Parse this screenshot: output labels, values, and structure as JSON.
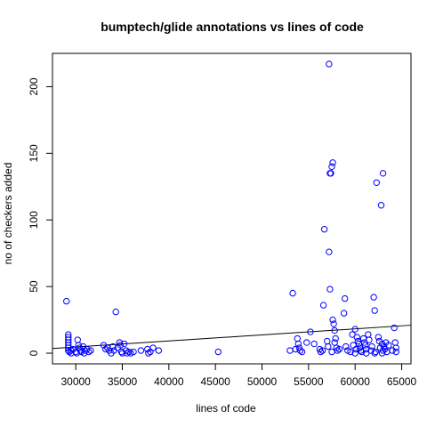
{
  "chart_data": {
    "type": "scatter",
    "title": "bumptech/glide annotations vs lines of code",
    "xlabel": "lines of code",
    "ylabel": "no of checkers added",
    "xlim": [
      27500,
      66000
    ],
    "ylim": [
      -8,
      225
    ],
    "xticks": [
      30000,
      35000,
      40000,
      45000,
      50000,
      55000,
      60000,
      65000
    ],
    "yticks": [
      0,
      50,
      100,
      150,
      200
    ],
    "point_color": "#0000ff",
    "line_color": "#000000",
    "grid": false,
    "regression_line": {
      "x": [
        27500,
        66000
      ],
      "y": [
        3.5,
        21
      ]
    },
    "points": [
      [
        29000,
        39
      ],
      [
        29200,
        14
      ],
      [
        29200,
        12
      ],
      [
        29200,
        10
      ],
      [
        29200,
        8
      ],
      [
        29200,
        6
      ],
      [
        29200,
        4
      ],
      [
        29200,
        2
      ],
      [
        29300,
        1
      ],
      [
        29500,
        2
      ],
      [
        29500,
        0
      ],
      [
        29700,
        3
      ],
      [
        30000,
        1
      ],
      [
        30100,
        0
      ],
      [
        30200,
        10
      ],
      [
        30300,
        6
      ],
      [
        30400,
        4
      ],
      [
        30500,
        2
      ],
      [
        30600,
        1
      ],
      [
        30800,
        5
      ],
      [
        30900,
        0
      ],
      [
        31000,
        2
      ],
      [
        31200,
        3
      ],
      [
        31400,
        1
      ],
      [
        31600,
        2
      ],
      [
        33000,
        6
      ],
      [
        33200,
        3
      ],
      [
        33400,
        4
      ],
      [
        33600,
        2
      ],
      [
        33800,
        0
      ],
      [
        34000,
        5
      ],
      [
        34100,
        2
      ],
      [
        34300,
        31
      ],
      [
        34500,
        4
      ],
      [
        34700,
        8
      ],
      [
        34800,
        6
      ],
      [
        34900,
        1
      ],
      [
        35000,
        0
      ],
      [
        35200,
        7
      ],
      [
        35400,
        2
      ],
      [
        35500,
        0
      ],
      [
        35700,
        1
      ],
      [
        35900,
        0
      ],
      [
        36200,
        1
      ],
      [
        37000,
        2
      ],
      [
        37700,
        3
      ],
      [
        37800,
        0
      ],
      [
        38000,
        1
      ],
      [
        38300,
        4
      ],
      [
        38900,
        2
      ],
      [
        45300,
        1
      ],
      [
        53000,
        2
      ],
      [
        53300,
        45
      ],
      [
        53600,
        3
      ],
      [
        53800,
        11
      ],
      [
        53900,
        7
      ],
      [
        54000,
        4
      ],
      [
        54100,
        2
      ],
      [
        54300,
        1
      ],
      [
        54800,
        8
      ],
      [
        55200,
        16
      ],
      [
        55600,
        7
      ],
      [
        56200,
        3
      ],
      [
        56300,
        1
      ],
      [
        56500,
        2
      ],
      [
        56600,
        36
      ],
      [
        56700,
        93
      ],
      [
        57000,
        9
      ],
      [
        57100,
        5
      ],
      [
        57200,
        217
      ],
      [
        57200,
        76
      ],
      [
        57300,
        135
      ],
      [
        57300,
        48
      ],
      [
        57400,
        135
      ],
      [
        57500,
        140
      ],
      [
        57600,
        143
      ],
      [
        57600,
        25
      ],
      [
        57700,
        22
      ],
      [
        57800,
        17
      ],
      [
        57900,
        11
      ],
      [
        58000,
        4
      ],
      [
        58100,
        2
      ],
      [
        57500,
        1
      ],
      [
        57800,
        8
      ],
      [
        58300,
        3
      ],
      [
        58800,
        30
      ],
      [
        58900,
        41
      ],
      [
        59000,
        5
      ],
      [
        59200,
        2
      ],
      [
        59500,
        1
      ],
      [
        59800,
        6
      ],
      [
        60000,
        18
      ],
      [
        60200,
        12
      ],
      [
        60300,
        9
      ],
      [
        60400,
        7
      ],
      [
        60500,
        4
      ],
      [
        60600,
        2
      ],
      [
        60700,
        1
      ],
      [
        60900,
        11
      ],
      [
        61000,
        8
      ],
      [
        61100,
        6
      ],
      [
        61200,
        3
      ],
      [
        61400,
        14
      ],
      [
        61500,
        10
      ],
      [
        61700,
        2
      ],
      [
        61800,
        5
      ],
      [
        62000,
        42
      ],
      [
        62100,
        32
      ],
      [
        62200,
        1
      ],
      [
        62300,
        128
      ],
      [
        62500,
        12
      ],
      [
        62600,
        9
      ],
      [
        62700,
        4
      ],
      [
        62800,
        111
      ],
      [
        62900,
        7
      ],
      [
        63000,
        2
      ],
      [
        63000,
        135
      ],
      [
        63100,
        5
      ],
      [
        63200,
        3
      ],
      [
        63300,
        8
      ],
      [
        63400,
        1
      ],
      [
        63600,
        6
      ],
      [
        64000,
        2
      ],
      [
        64200,
        19
      ],
      [
        64300,
        8
      ],
      [
        64400,
        4
      ],
      [
        64400,
        1
      ],
      [
        60100,
        3
      ],
      [
        59700,
        14
      ],
      [
        62100,
        0
      ],
      [
        62900,
        0
      ],
      [
        61200,
        0
      ],
      [
        60000,
        0
      ]
    ]
  }
}
